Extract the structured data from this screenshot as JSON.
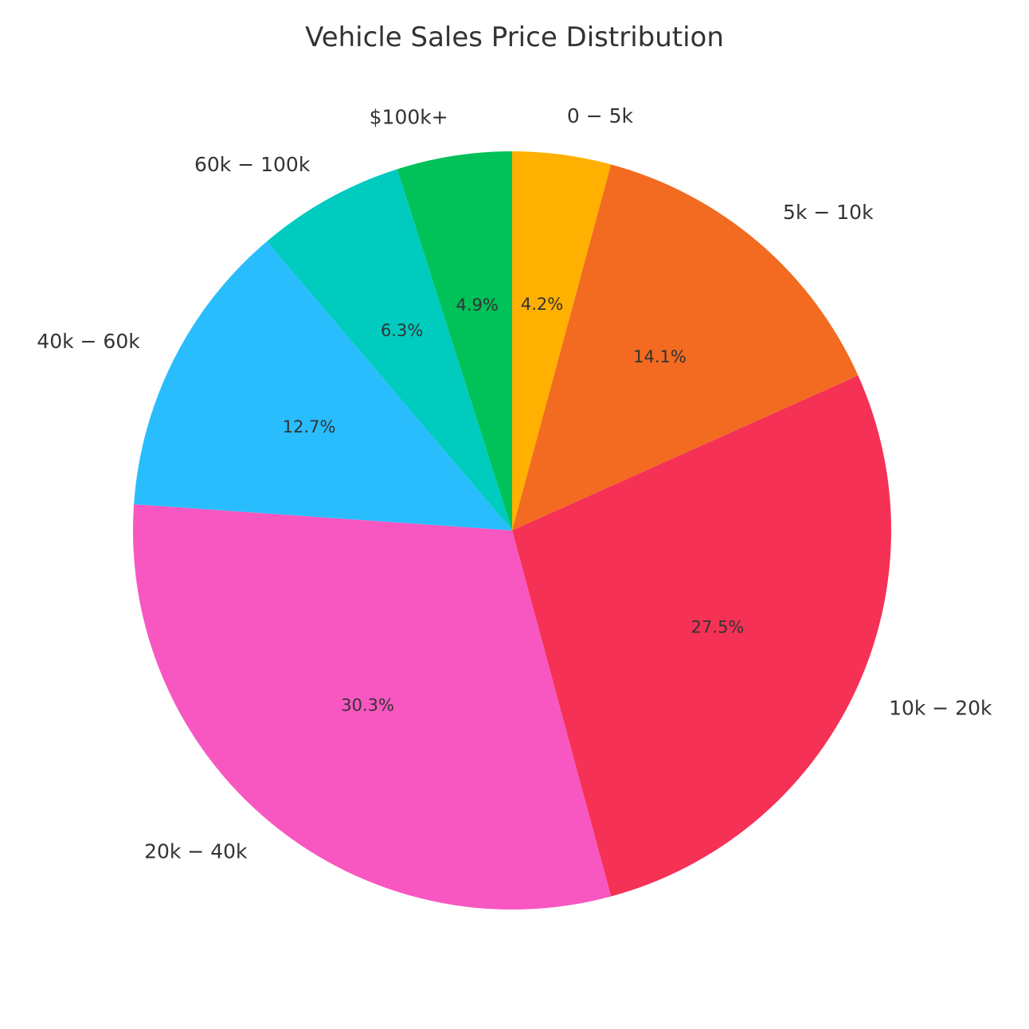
{
  "chart_data": {
    "type": "pie",
    "title": "Vehicle Sales Price Distribution",
    "start_angle_deg": 90,
    "direction": "clockwise",
    "slices": [
      {
        "label": "0 − 5k",
        "value": 4.2,
        "pct_label": "4.2%",
        "color": "#FFB000"
      },
      {
        "label": "5k − 10k",
        "value": 14.1,
        "pct_label": "14.1%",
        "color": "#F26B21"
      },
      {
        "label": "10k − 20k",
        "value": 27.5,
        "pct_label": "27.5%",
        "color": "#F53155"
      },
      {
        "label": "20k − 40k",
        "value": 30.3,
        "pct_label": "30.3%",
        "color": "#F857C1"
      },
      {
        "label": "40k − 60k",
        "value": 12.7,
        "pct_label": "12.7%",
        "color": "#29BDFD"
      },
      {
        "label": "60k − 100k",
        "value": 6.3,
        "pct_label": "6.3%",
        "color": "#00CBBF"
      },
      {
        "label": "$100k+",
        "value": 4.9,
        "pct_label": "4.9%",
        "color": "#01C159"
      }
    ]
  }
}
